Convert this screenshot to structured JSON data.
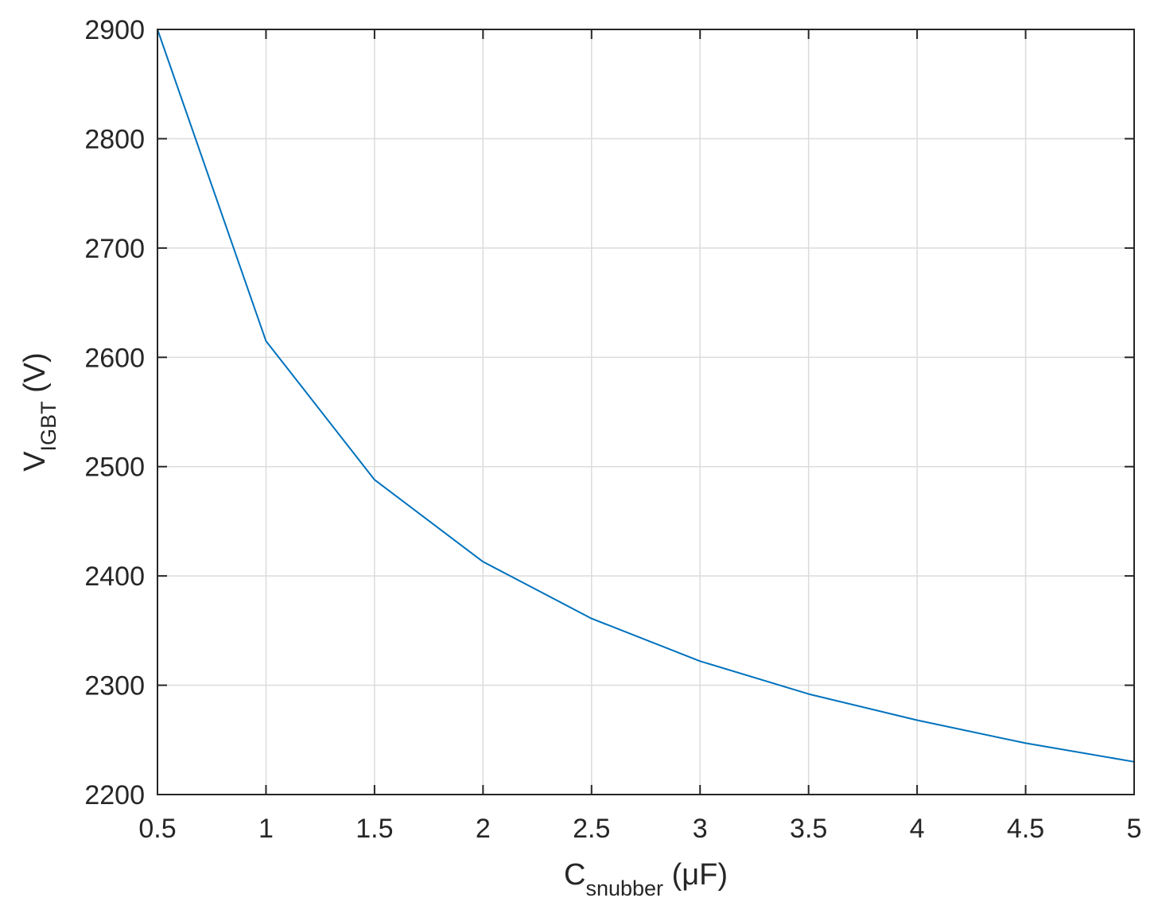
{
  "chart_data": {
    "type": "line",
    "xlabel": {
      "main": "C",
      "sub": "snubber",
      "unit": " (μF)"
    },
    "ylabel": {
      "main": "V",
      "sub": "IGBT",
      "unit": " (V)"
    },
    "xlim": [
      0.5,
      5
    ],
    "ylim": [
      2200,
      2900
    ],
    "xticks": [
      0.5,
      1,
      1.5,
      2,
      2.5,
      3,
      3.5,
      4,
      4.5,
      5
    ],
    "xtick_labels": [
      "0.5",
      "1",
      "1.5",
      "2",
      "2.5",
      "3",
      "3.5",
      "4",
      "4.5",
      "5"
    ],
    "yticks": [
      2200,
      2300,
      2400,
      2500,
      2600,
      2700,
      2800,
      2900
    ],
    "ytick_labels": [
      "2200",
      "2300",
      "2400",
      "2500",
      "2600",
      "2700",
      "2800",
      "2900"
    ],
    "grid": true,
    "series": [
      {
        "color": "#0072BD",
        "x": [
          0.5,
          1,
          1.5,
          2,
          2.5,
          3,
          3.5,
          4,
          4.5,
          5
        ],
        "y": [
          2900,
          2615,
          2488,
          2413,
          2361,
          2322,
          2292,
          2268,
          2247,
          2230
        ]
      }
    ]
  }
}
